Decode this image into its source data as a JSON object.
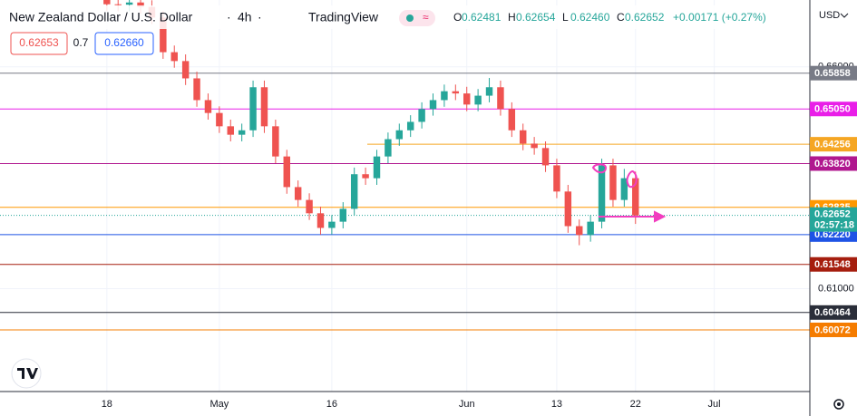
{
  "chart_data": {
    "type": "candlestick",
    "title": "New Zealand Dollar / U.S. Dollar",
    "interval": "4h",
    "source": "TradingView",
    "currency": "USD",
    "quote": [
      {
        "key": "O",
        "value": "0.62481"
      },
      {
        "key": "H",
        "value": "0.62654"
      },
      {
        "key": "L",
        "value": "0.62460"
      },
      {
        "key": "C",
        "value": "0.62652"
      }
    ],
    "change": "+0.00171 (+0.27%)",
    "bid": "0.62653",
    "spread": "0.7",
    "ask": "0.62660",
    "categories": [
      null,
      null,
      null,
      null,
      null,
      null,
      null,
      null,
      null,
      "18",
      null,
      null,
      null,
      null,
      null,
      null,
      null,
      null,
      null,
      "May",
      null,
      null,
      null,
      null,
      null,
      null,
      null,
      null,
      null,
      "16",
      null,
      null,
      null,
      null,
      null,
      null,
      null,
      null,
      null,
      null,
      null,
      "Jun",
      null,
      null,
      null,
      null,
      null,
      null,
      null,
      "13",
      null,
      null,
      null,
      null,
      null,
      null,
      "22",
      null,
      null,
      null,
      null,
      null,
      null,
      "Jul",
      null,
      null,
      null,
      null,
      null,
      null,
      null,
      null
    ],
    "open": [
      null,
      null,
      null,
      null,
      null,
      null,
      null,
      null,
      null,
      0.676,
      0.6741,
      0.674,
      0.6745,
      0.6735,
      0.6711,
      0.6633,
      0.6613,
      0.6574,
      0.6525,
      0.6496,
      0.6466,
      0.6447,
      0.6457,
      0.6554,
      0.6466,
      0.6398,
      0.6329,
      0.63,
      0.627,
      0.6237,
      0.6251,
      0.628,
      0.6358,
      0.6349,
      0.6398,
      0.6437,
      0.6457,
      0.6476,
      0.6505,
      0.6525,
      0.6545,
      0.654,
      0.6515,
      0.6535,
      0.6554,
      0.6505,
      0.6457,
      0.6427,
      0.6417,
      0.6378,
      0.6319,
      0.6241,
      0.6221,
      0.6251,
      0.6378,
      0.63,
      0.6349,
      null,
      null,
      null,
      null,
      null,
      null,
      null,
      null,
      null,
      null,
      null,
      null,
      null,
      null,
      null
    ],
    "high": [
      null,
      null,
      null,
      null,
      null,
      null,
      null,
      null,
      null,
      0.6775,
      0.6756,
      0.676,
      0.676,
      0.675,
      0.6726,
      0.6648,
      0.6628,
      0.6589,
      0.654,
      0.6511,
      0.6481,
      0.6472,
      0.6569,
      0.6569,
      0.6481,
      0.6413,
      0.6344,
      0.6315,
      0.6285,
      0.6266,
      0.6295,
      0.6373,
      0.6373,
      0.6413,
      0.6452,
      0.6472,
      0.6491,
      0.652,
      0.654,
      0.656,
      0.656,
      0.6555,
      0.655,
      0.6575,
      0.6569,
      0.652,
      0.6472,
      0.6442,
      0.6432,
      0.6393,
      0.6334,
      0.6256,
      0.6266,
      0.6393,
      0.6393,
      0.637,
      0.6364,
      null,
      null,
      null,
      null,
      null,
      null,
      null,
      null,
      null,
      null,
      null,
      null,
      null,
      null,
      null
    ],
    "low": [
      null,
      null,
      null,
      null,
      null,
      null,
      null,
      null,
      null,
      0.6726,
      0.6725,
      0.6725,
      0.672,
      0.6696,
      0.6618,
      0.6598,
      0.6559,
      0.651,
      0.6481,
      0.6451,
      0.6432,
      0.6432,
      0.6442,
      0.6451,
      0.6383,
      0.6314,
      0.6285,
      0.6255,
      0.6222,
      0.6222,
      0.6236,
      0.6265,
      0.6334,
      0.6334,
      0.6383,
      0.6422,
      0.6442,
      0.6461,
      0.649,
      0.651,
      0.6525,
      0.65,
      0.65,
      0.652,
      0.649,
      0.6442,
      0.6412,
      0.6402,
      0.6363,
      0.6304,
      0.6226,
      0.6198,
      0.6206,
      0.6236,
      0.6285,
      0.6285,
      0.6246,
      null,
      null,
      null,
      null,
      null,
      null,
      null,
      null,
      null,
      null,
      null,
      null,
      null,
      null,
      null
    ],
    "close": [
      null,
      null,
      null,
      null,
      null,
      null,
      null,
      null,
      null,
      0.6741,
      0.674,
      0.6745,
      0.6735,
      0.6711,
      0.6633,
      0.6613,
      0.6574,
      0.6525,
      0.6496,
      0.6466,
      0.6447,
      0.6457,
      0.6554,
      0.6466,
      0.6398,
      0.6329,
      0.63,
      0.627,
      0.6237,
      0.6251,
      0.628,
      0.6358,
      0.6349,
      0.6398,
      0.6437,
      0.6457,
      0.6476,
      0.6505,
      0.6525,
      0.6545,
      0.654,
      0.6515,
      0.6535,
      0.6554,
      0.6505,
      0.6457,
      0.6427,
      0.6417,
      0.6378,
      0.6319,
      0.6241,
      0.6221,
      0.6251,
      0.6378,
      0.63,
      0.6349,
      0.62652,
      null,
      null,
      null,
      null,
      null,
      null,
      null,
      null,
      null,
      null,
      null,
      null,
      null,
      null,
      null
    ],
    "up_color": "#26a69a",
    "down_color": "#ef5350",
    "ylim": [
      0.58683,
      0.67506
    ],
    "yticks": [
      {
        "value": 0.61,
        "label": "0.61000"
      },
      {
        "value": 0.66,
        "label": "0.66000"
      }
    ],
    "grid": true,
    "levels": [
      {
        "value": 0.65858,
        "label": "0.65858",
        "color": "#787b86"
      },
      {
        "value": 0.6505,
        "label": "0.65050",
        "color": "#e91ee8"
      },
      {
        "value": 0.64256,
        "label": "0.64256",
        "color": "#f5a623"
      },
      {
        "value": 0.6382,
        "label": "0.63820",
        "color": "#b0178f"
      },
      {
        "value": 0.62835,
        "label": "0.62835",
        "color": "#ff9800"
      },
      {
        "value": 0.6222,
        "label": "0.62220",
        "color": "#1e53e5"
      },
      {
        "value": 0.61548,
        "label": "0.61548",
        "color": "#a51e0e"
      },
      {
        "value": 0.60464,
        "label": "0.60464",
        "color": "#2a2e39"
      },
      {
        "value": 0.60072,
        "label": "0.60072",
        "color": "#f57c00"
      }
    ],
    "last_price": {
      "value": 0.62652,
      "label": "0.62652",
      "countdown": "02:57:18",
      "color": "#26a69a"
    }
  }
}
